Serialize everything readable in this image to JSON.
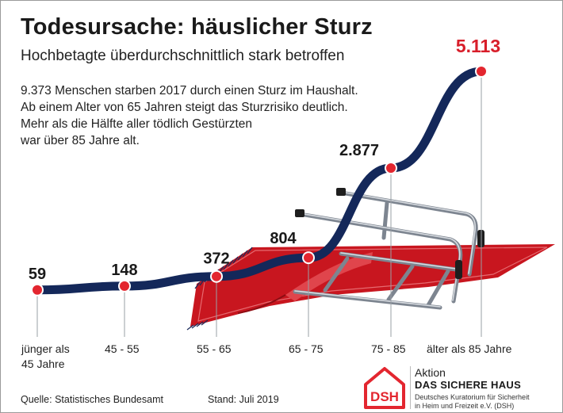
{
  "title": "Todesursache: häuslicher Sturz",
  "subtitle": "Hochbetagte überdurchschnittlich stark betroffen",
  "description": [
    "9.373 Menschen starben 2017 durch einen Sturz im Haushalt.",
    "Ab einem Alter von 65 Jahren steigt das Sturzrisiko deutlich.",
    "Mehr als die Hälfte aller tödlich Gestürzten",
    "war über 85 Jahre alt."
  ],
  "chart_data": {
    "type": "line",
    "categories": [
      "jünger als 45 Jahre",
      "45 - 55",
      "55 - 65",
      "65 - 75",
      "75 - 85",
      "älter als 85 Jahre"
    ],
    "category_lines": [
      [
        "jünger als",
        "45 Jahre"
      ],
      [
        "45 - 55"
      ],
      [
        "55 - 65"
      ],
      [
        "65 - 75"
      ],
      [
        "75 - 85"
      ],
      [
        "älter als 85 Jahre"
      ]
    ],
    "values": [
      59,
      148,
      372,
      804,
      2877,
      5113
    ],
    "value_labels": [
      "59",
      "148",
      "372",
      "804",
      "2.877",
      "5.113"
    ],
    "highlight_last": true,
    "ylim": [
      0,
      5113
    ],
    "grid": false,
    "colors": {
      "line": "#14285a",
      "marker": "#e3262f",
      "highlight_label": "#d81e2a",
      "carpet": "#c8161f",
      "fringe": "#1c2a5a"
    }
  },
  "footer": {
    "source": "Quelle: Statistisches Bundesamt",
    "date": "Stand: Juli 2019"
  },
  "logo": {
    "abbr": "DSH",
    "line1": "Aktion",
    "line2": "DAS SICHERE HAUS",
    "line3a": "Deutsches Kuratorium für Sicherheit",
    "line3b": "in Heim und Freizeit e.V. (DSH)",
    "color": "#e3262f"
  },
  "illustration": "walker-on-carpet"
}
